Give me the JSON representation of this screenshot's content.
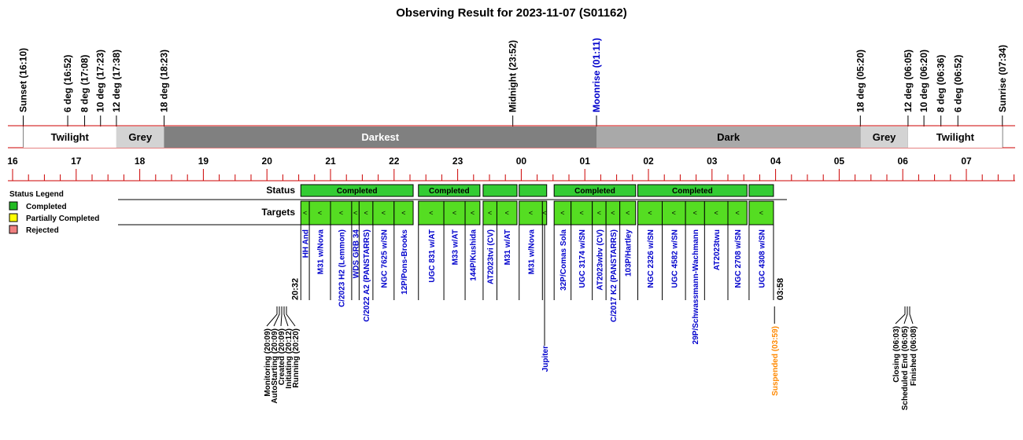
{
  "title": "Observing Result for 2023-11-07 (S01162)",
  "colors": {
    "twilight": "#ffffff",
    "grey": "#d3d3d3",
    "darkest": "#808080",
    "dark": "#a9a9a9",
    "status_completed": "#33cc33",
    "target_fill": "#55dd22",
    "legend_completed": "#22bb22",
    "legend_partial": "#ffff00",
    "legend_rejected": "#f08080",
    "axis_red": "#cc0000",
    "target_text": "#0000cc",
    "moonrise": "#0000cc",
    "suspended": "#ff8800",
    "black": "#000000"
  },
  "timeline": {
    "start_label": "16",
    "hour_labels": [
      "16",
      "17",
      "18",
      "19",
      "20",
      "21",
      "22",
      "23",
      "00",
      "01",
      "02",
      "03",
      "04",
      "05",
      "06",
      "07"
    ]
  },
  "time_events": [
    {
      "label": "Sunset (16:10)",
      "h": 16.167
    },
    {
      "label": "6 deg (16:52)",
      "h": 16.867
    },
    {
      "label": "8 deg (17:08)",
      "h": 17.133
    },
    {
      "label": "10 deg (17:23)",
      "h": 17.383
    },
    {
      "label": "12 deg (17:38)",
      "h": 17.633
    },
    {
      "label": "18 deg (18:23)",
      "h": 18.383
    },
    {
      "label": "Midnight (23:52)",
      "h": 23.867
    },
    {
      "label": "Moonrise (01:11)",
      "h": 25.183,
      "color": "moonrise"
    },
    {
      "label": "18 deg (05:20)",
      "h": 29.333
    },
    {
      "label": "12 deg (06:05)",
      "h": 30.083
    },
    {
      "label": "10 deg (06:20)",
      "h": 30.333
    },
    {
      "label": "8 deg (06:36)",
      "h": 30.6
    },
    {
      "label": "6 deg (06:52)",
      "h": 30.867
    },
    {
      "label": "Sunrise (07:34)",
      "h": 31.567
    }
  ],
  "sky_bands": [
    {
      "label": "Twilight",
      "from": 16.167,
      "to": 17.633,
      "color": "twilight"
    },
    {
      "label": "Grey",
      "from": 17.633,
      "to": 18.383,
      "color": "grey"
    },
    {
      "label": "Darkest",
      "from": 18.383,
      "to": 25.183,
      "color": "darkest"
    },
    {
      "label": "Dark",
      "from": 25.183,
      "to": 29.333,
      "color": "dark"
    },
    {
      "label": "Grey",
      "from": 29.333,
      "to": 30.083,
      "color": "grey"
    },
    {
      "label": "Twilight",
      "from": 30.083,
      "to": 31.567,
      "color": "twilight"
    }
  ],
  "rows": {
    "status_label": "Status",
    "targets_label": "Targets"
  },
  "legend": {
    "title": "Status Legend",
    "items": [
      {
        "label": "Completed",
        "color": "legend_completed"
      },
      {
        "label": "Partially Completed",
        "color": "legend_partial"
      },
      {
        "label": "Rejected",
        "color": "legend_rejected"
      }
    ]
  },
  "status_blocks": [
    {
      "label": "Completed",
      "from": 20.533,
      "to": 22.3
    },
    {
      "label": "Completed",
      "from": 22.383,
      "to": 23.35
    },
    {
      "label": "",
      "from": 23.4,
      "to": 23.933
    },
    {
      "label": "",
      "from": 23.967,
      "to": 24.4
    },
    {
      "label": "Completed",
      "from": 24.517,
      "to": 25.8
    },
    {
      "label": "Completed",
      "from": 25.833,
      "to": 27.55
    },
    {
      "label": "",
      "from": 27.583,
      "to": 27.967
    }
  ],
  "run_times": {
    "start": "20:32",
    "end": "03:58"
  },
  "targets": [
    {
      "name": "HH And",
      "from": 20.533,
      "to": 20.667
    },
    {
      "name": "M31 w/Nova",
      "from": 20.667,
      "to": 21.0
    },
    {
      "name": "C/2023 H2 (Lemmon)",
      "from": 21.0,
      "to": 21.333
    },
    {
      "name": "WDS GRB 34",
      "from": 21.333,
      "to": 21.45
    },
    {
      "name": "C/2022 A2 (PANSTARRS)",
      "from": 21.45,
      "to": 21.667
    },
    {
      "name": "NGC 7625 w/SN",
      "from": 21.667,
      "to": 22.0
    },
    {
      "name": "12P/Pons-Brooks",
      "from": 22.0,
      "to": 22.3
    },
    {
      "name": "UGC 831 w/AT",
      "from": 22.383,
      "to": 22.783
    },
    {
      "name": "M33  w/AT",
      "from": 22.783,
      "to": 23.117
    },
    {
      "name": "144P/Kushida",
      "from": 23.117,
      "to": 23.35
    },
    {
      "name": "AT2023tvi (CV)",
      "from": 23.4,
      "to": 23.617
    },
    {
      "name": "M31 w/AT",
      "from": 23.617,
      "to": 23.933
    },
    {
      "name": "M31 w/Nova",
      "from": 23.967,
      "to": 24.333
    },
    {
      "name": "Jupiter",
      "from": 24.333,
      "to": 24.4
    },
    {
      "name": "32P/Comas Sola",
      "from": 24.517,
      "to": 24.783
    },
    {
      "name": "UGC 3174 w/SN",
      "from": 24.783,
      "to": 25.117
    },
    {
      "name": "AT2023wbv (CV)",
      "from": 25.117,
      "to": 25.333
    },
    {
      "name": "C/2017 K2 (PANSTARRS)",
      "from": 25.333,
      "to": 25.55
    },
    {
      "name": "103P/Hartley",
      "from": 25.55,
      "to": 25.8
    },
    {
      "name": "NGC 2326 w/SN",
      "from": 25.833,
      "to": 26.217
    },
    {
      "name": "UGC 4582 w/SN",
      "from": 26.217,
      "to": 26.583
    },
    {
      "name": "29P/Schwassmann-Wachmann",
      "from": 26.583,
      "to": 26.883
    },
    {
      "name": "AT2023twu",
      "from": 26.883,
      "to": 27.25
    },
    {
      "name": "NGC 2708 w/SN",
      "from": 27.25,
      "to": 27.55
    },
    {
      "name": "UGC 4308 w/SN",
      "from": 27.583,
      "to": 27.967
    }
  ],
  "target_marker": "<",
  "left_log": [
    "Monitoring (20:09)",
    "AutoStarting (20:09)",
    "Created (20:09)",
    "Initiating (20:12)",
    "Running (20:20)"
  ],
  "suspended": "Suspended (03:59)",
  "right_log": [
    "Closing (06:03)",
    "Scheduled End (06:05)",
    "Finished (06:08)"
  ]
}
